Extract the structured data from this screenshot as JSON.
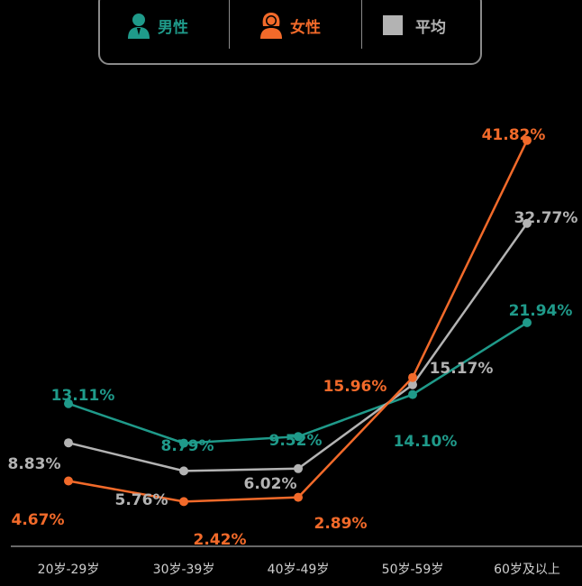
{
  "colors": {
    "male": "#1f9a8a",
    "female": "#f26a2a",
    "avg": "#b3b3b3",
    "axis": "#8a8a8a"
  },
  "legend": [
    {
      "key": "male",
      "label": "男性",
      "icon": "male-person-icon"
    },
    {
      "key": "female",
      "label": "女性",
      "icon": "female-person-icon"
    },
    {
      "key": "avg",
      "label": "平均",
      "icon": "gray-square-icon"
    }
  ],
  "chart_data": {
    "type": "line",
    "title": "",
    "xlabel": "",
    "ylabel": "",
    "ylim": [
      0,
      45
    ],
    "grid": false,
    "legend_position": "top",
    "categories": [
      "20岁-29岁",
      "30岁-39岁",
      "40岁-49岁",
      "50岁-59岁",
      "60岁及以上"
    ],
    "series": [
      {
        "key": "male",
        "name": "男性",
        "values": [
          13.11,
          8.79,
          9.52,
          14.1,
          21.94
        ],
        "labels": [
          "13.11%",
          "8.79%",
          "9.52%",
          "14.10%",
          "21.94%"
        ]
      },
      {
        "key": "female",
        "name": "女性",
        "values": [
          4.67,
          2.42,
          2.89,
          15.96,
          41.82
        ],
        "labels": [
          "4.67%",
          "2.42%",
          "2.89%",
          "15.96%",
          "41.82%"
        ]
      },
      {
        "key": "avg",
        "name": "平均",
        "values": [
          8.83,
          5.76,
          6.02,
          15.17,
          32.77
        ],
        "labels": [
          "8.83%",
          "5.76%",
          "6.02%",
          "15.17%",
          "32.77%"
        ]
      }
    ]
  }
}
